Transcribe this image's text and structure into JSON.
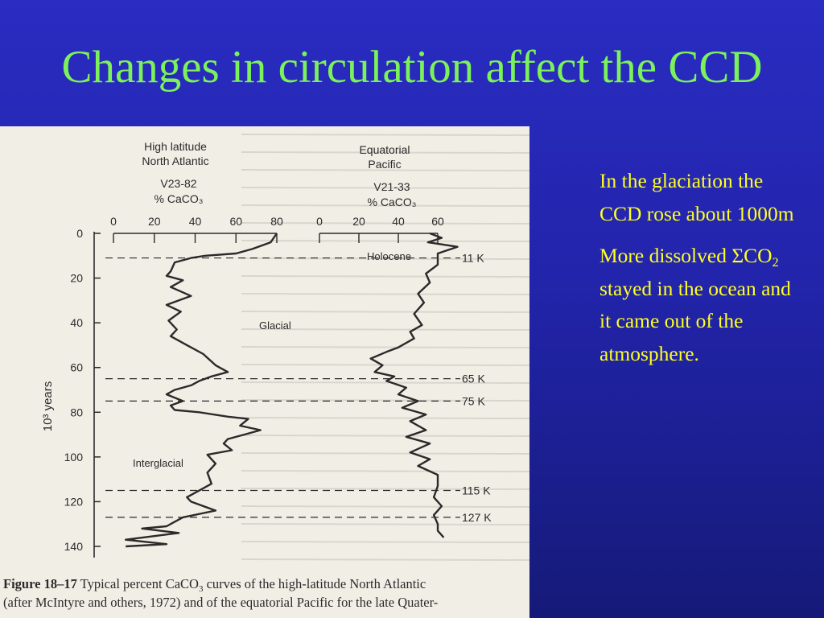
{
  "slide": {
    "title": "Changes in circulation affect the CCD",
    "point1": "In the glaciation the CCD rose about 1000m",
    "point2_prefix": "More dissolved ",
    "point2_sigma": "ΣCO",
    "point2_sub": "2",
    "point2_suffix": " stayed in the ocean and it came out of the atmosphere."
  },
  "colors": {
    "background": "#2424b4",
    "title": "#7cf25a",
    "body_text": "#ffff22",
    "figure_paper": "#f1eee6",
    "ink": "#2a2a2a"
  },
  "chart_data": {
    "type": "line",
    "caption": "Figure 18–17  Typical percent CaCO₃ curves of the high-latitude North Atlantic (after McIntyre and others, 1972) and of the equatorial Pacific for the late Quater-",
    "ylabel": "10³ years",
    "ylim": [
      0,
      145
    ],
    "yticks": [
      0,
      20,
      40,
      60,
      80,
      100,
      120,
      140
    ],
    "panels": [
      {
        "region_line1": "High latitude",
        "region_line2": "North Atlantic",
        "core": "V23-82",
        "unit": "% CaCO₃",
        "xlim": [
          0,
          80
        ],
        "xticks": [
          0,
          20,
          40,
          60,
          80
        ],
        "series": [
          {
            "x": [
              80,
              77,
              68,
              60,
              45,
              38,
              30,
              28,
              26,
              34,
              28,
              38,
              26,
              33,
              27,
              31,
              28,
              36,
              44,
              50,
              56,
              48,
              42,
              38,
              30,
              26,
              34,
              28,
              30,
              42,
              56,
              66,
              62,
              72,
              64,
              56,
              54,
              58,
              46,
              50,
              46,
              48,
              40,
              36,
              38,
              50,
              34,
              30,
              26,
              14,
              32,
              6,
              26,
              6
            ],
            "y": [
              0,
              4,
              7,
              9,
              10,
              11,
              13,
              17,
              19,
              21,
              24,
              28,
              32,
              35,
              39,
              43,
              46,
              50,
              54,
              59,
              62,
              64,
              66,
              68,
              70,
              72,
              75,
              77,
              79,
              80,
              82,
              83,
              86,
              88,
              90,
              92,
              94,
              97,
              99,
              103,
              107,
              112,
              116,
              118,
              120,
              124,
              127,
              129,
              131,
              132,
              134,
              137,
              139,
              140
            ]
          }
        ]
      },
      {
        "region_line1": "Equatorial",
        "region_line2": "Pacific",
        "core": "V21-33",
        "unit": "% CaCO₃",
        "xlim": [
          0,
          60
        ],
        "xticks": [
          0,
          20,
          40,
          60
        ],
        "series": [
          {
            "x": [
              56,
              62,
              55,
              70,
              60,
              60,
              54,
              56,
              50,
              53,
              48,
              52,
              46,
              48,
              40,
              34,
              26,
              32,
              28,
              38,
              34,
              44,
              40,
              50,
              42,
              54,
              46,
              54,
              44,
              56,
              46,
              56,
              50,
              60,
              60,
              58,
              62,
              58,
              60,
              60,
              63
            ],
            "y": [
              0,
              2,
              4,
              6,
              9,
              14,
              18,
              22,
              27,
              31,
              36,
              41,
              44,
              47,
              51,
              53,
              56,
              59,
              62,
              64,
              66,
              69,
              72,
              75,
              78,
              81,
              84,
              88,
              91,
              94,
              98,
              101,
              104,
              108,
              113,
              118,
              122,
              126,
              130,
              133,
              136
            ]
          }
        ]
      }
    ],
    "annotations": [
      "Holocene",
      "Glacial",
      "Interglacial"
    ],
    "boundaries": [
      {
        "label": "11 K",
        "y": 11
      },
      {
        "label": "65 K",
        "y": 65
      },
      {
        "label": "75 K",
        "y": 75
      },
      {
        "label": "115 K",
        "y": 115
      },
      {
        "label": "127 K",
        "y": 127
      }
    ]
  }
}
